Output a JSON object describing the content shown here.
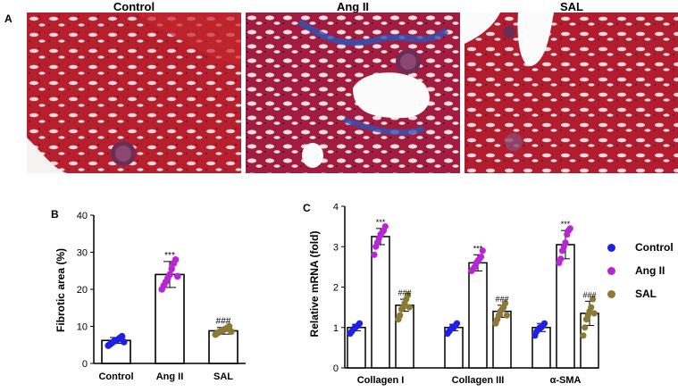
{
  "panels": {
    "a": "A",
    "b": "B",
    "c": "C"
  },
  "images": [
    {
      "title": "Control"
    },
    {
      "title": "Ang II"
    },
    {
      "title": "SAL"
    }
  ],
  "colors": {
    "control": "#1f1fe6",
    "angii": "#b825d6",
    "sal": "#8a7a35",
    "tissue": "#b31c2a",
    "fibrosis": "#2d55b8"
  },
  "chart_data": [
    {
      "type": "bar",
      "panel": "B",
      "categories": [
        "Control",
        "Ang II",
        "SAL"
      ],
      "values": [
        6.2,
        24.0,
        8.8
      ],
      "errors": [
        0.8,
        3.5,
        0.9
      ],
      "points": [
        [
          4.8,
          5.2,
          5.6,
          6.0,
          6.2,
          6.5,
          6.9,
          7.3,
          5.8
        ],
        [
          20.0,
          21.0,
          22.0,
          23.0,
          24.0,
          25.5,
          27.0,
          28.0,
          23.5
        ],
        [
          7.8,
          8.2,
          8.5,
          8.8,
          9.0,
          9.3,
          9.6,
          10.0,
          8.6
        ]
      ],
      "annotations": [
        "",
        "***",
        "###"
      ],
      "ylabel": "Fibrotic area (%)",
      "ylim": [
        0,
        40
      ],
      "yticks": [
        "0",
        "10",
        "20",
        "30",
        "40"
      ]
    },
    {
      "type": "bar",
      "panel": "C",
      "categories": [
        "Collagen I",
        "Collagen III",
        "α-SMA"
      ],
      "series": [
        {
          "name": "Control",
          "values": [
            1.0,
            1.0,
            1.0
          ],
          "errors": [
            0.08,
            0.08,
            0.1
          ]
        },
        {
          "name": "Ang II",
          "values": [
            3.25,
            2.6,
            3.05
          ],
          "errors": [
            0.2,
            0.2,
            0.35
          ]
        },
        {
          "name": "SAL",
          "values": [
            1.55,
            1.4,
            1.35
          ],
          "errors": [
            0.15,
            0.15,
            0.3
          ]
        }
      ],
      "points": [
        [
          [
            0.85,
            0.9,
            0.95,
            1.0,
            1.02,
            1.05,
            1.1
          ],
          [
            2.8,
            3.0,
            3.1,
            3.2,
            3.3,
            3.35,
            3.4,
            3.5
          ],
          [
            1.2,
            1.3,
            1.45,
            1.5,
            1.6,
            1.7,
            1.8,
            1.5
          ]
        ],
        [
          [
            0.85,
            0.9,
            0.95,
            1.0,
            1.0,
            1.05,
            1.1
          ],
          [
            2.4,
            2.45,
            2.5,
            2.6,
            2.65,
            2.7,
            2.75,
            2.9
          ],
          [
            1.1,
            1.2,
            1.3,
            1.4,
            1.45,
            1.5,
            1.6,
            1.3
          ]
        ],
        [
          [
            0.8,
            0.9,
            0.95,
            1.0,
            1.0,
            1.05,
            1.1
          ],
          [
            2.6,
            2.7,
            2.9,
            3.0,
            3.1,
            3.3,
            3.4,
            3.45
          ],
          [
            0.8,
            1.0,
            1.2,
            1.3,
            1.4,
            1.5,
            1.7,
            1.35
          ]
        ]
      ],
      "annotations": [
        [
          "",
          "***",
          "###"
        ],
        [
          "",
          "***",
          "###"
        ],
        [
          "",
          "***",
          "###"
        ]
      ],
      "ylabel": "Relative mRNA (fold)",
      "ylim": [
        0,
        4
      ],
      "yticks": [
        "0",
        "1",
        "2",
        "3",
        "4"
      ],
      "legend": [
        "Control",
        "Ang II",
        "SAL"
      ],
      "legend_position": "right"
    }
  ]
}
